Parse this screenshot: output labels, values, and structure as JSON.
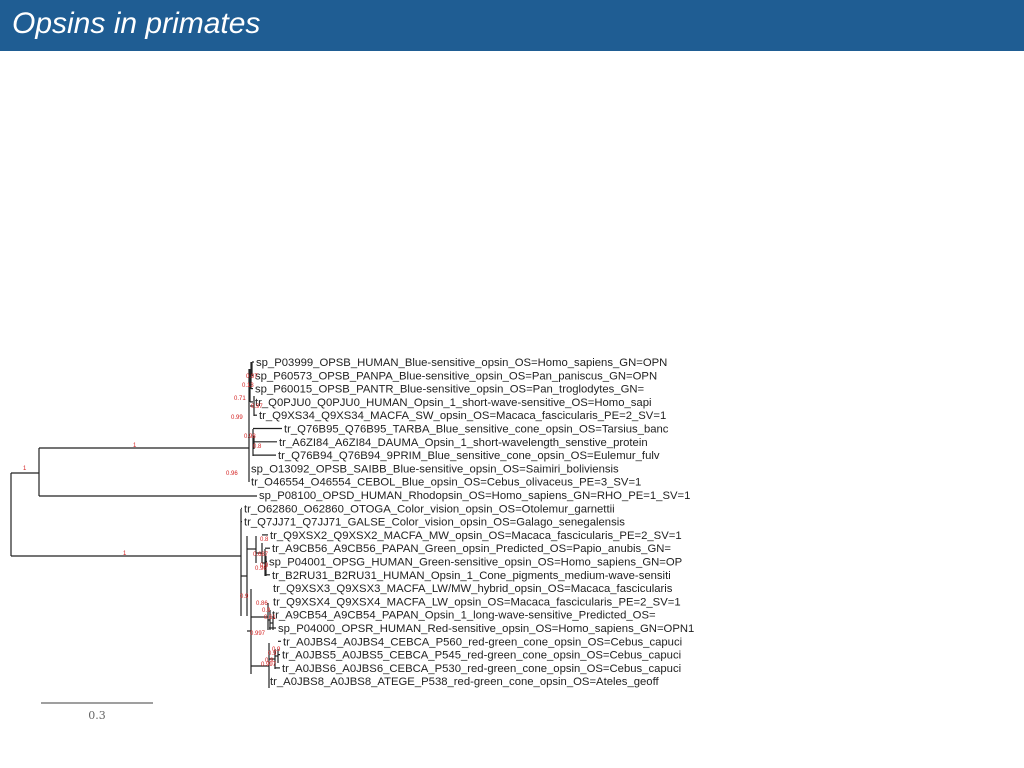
{
  "header": {
    "title": "Opsins in primates"
  },
  "tree": {
    "leaves": [
      "sp_P03999_OPSB_HUMAN_Blue-sensitive_opsin_OS=Homo_sapiens_GN=OPN",
      "sp_P60573_OPSB_PANPA_Blue-sensitive_opsin_OS=Pan_paniscus_GN=OPN",
      "sp_P60015_OPSB_PANTR_Blue-sensitive_opsin_OS=Pan_troglodytes_GN=",
      "tr_Q0PJU0_Q0PJU0_HUMAN_Opsin_1_short-wave-sensitive_OS=Homo_sapi",
      "tr_Q9XS34_Q9XS34_MACFA_SW_opsin_OS=Macaca_fascicularis_PE=2_SV=1",
      "tr_Q76B95_Q76B95_TARBA_Blue_sensitive_cone_opsin_OS=Tarsius_banc",
      "tr_A6ZI84_A6ZI84_DAUMA_Opsin_1_short-wavelength_senstive_protein",
      "tr_Q76B94_Q76B94_9PRIM_Blue_sensitive_cone_opsin_OS=Eulemur_fulv",
      "sp_O13092_OPSB_SAIBB_Blue-sensitive_opsin_OS=Saimiri_boliviensis",
      "tr_O46554_O46554_CEBOL_Blue_opsin_OS=Cebus_olivaceus_PE=3_SV=1",
      "sp_P08100_OPSD_HUMAN_Rhodopsin_OS=Homo_sapiens_GN=RHO_PE=1_SV=1",
      "tr_O62860_O62860_OTOGA_Color_vision_opsin_OS=Otolemur_garnettii",
      "tr_Q7JJ71_Q7JJ71_GALSE_Color_vision_opsin_OS=Galago_senegalensis",
      "tr_Q9XSX2_Q9XSX2_MACFA_MW_opsin_OS=Macaca_fascicularis_PE=2_SV=1",
      "tr_A9CB56_A9CB56_PAPAN_Green_opsin_Predicted_OS=Papio_anubis_GN=",
      "sp_P04001_OPSG_HUMAN_Green-sensitive_opsin_OS=Homo_sapiens_GN=OP",
      "tr_B2RU31_B2RU31_HUMAN_Opsin_1_Cone_pigments_medium-wave-sensiti",
      "tr_Q9XSX3_Q9XSX3_MACFA_LW/MW_hybrid_opsin_OS=Macaca_fascicularis",
      "tr_Q9XSX4_Q9XSX4_MACFA_LW_opsin_OS=Macaca_fascicularis_PE=2_SV=1",
      "tr_A9CB54_A9CB54_PAPAN_Opsin_1_long-wave-sensitive_Predicted_OS=",
      "sp_P04000_OPSR_HUMAN_Red-sensitive_opsin_OS=Homo_sapiens_GN=OPN1",
      "tr_A0JBS4_A0JBS4_CEBCA_P560_red-green_cone_opsin_OS=Cebus_capuci",
      "tr_A0JBS5_A0JBS5_CEBCA_P545_red-green_cone_opsin_OS=Cebus_capuci",
      "tr_A0JBS6_A0JBS6_CEBCA_P530_red-green_cone_opsin_OS=Cebus_capuci",
      "tr_A0JBS8_A0JBS8_ATEGE_P538_red-green_cone_opsin_OS=Ateles_geoff"
    ],
    "support": [
      "1",
      "1",
      "1",
      "0.98",
      "0.71",
      "0.99",
      "0.13",
      "0.97",
      "0.96",
      "0.97",
      "0.8",
      "0.96",
      "0.8",
      "0.687",
      "0.9",
      "0.9",
      "0.86",
      "0.9",
      "0.61",
      "0.997",
      "0.9",
      "0.9",
      "0.997",
      "0.9"
    ],
    "scale_label": "0.3"
  }
}
